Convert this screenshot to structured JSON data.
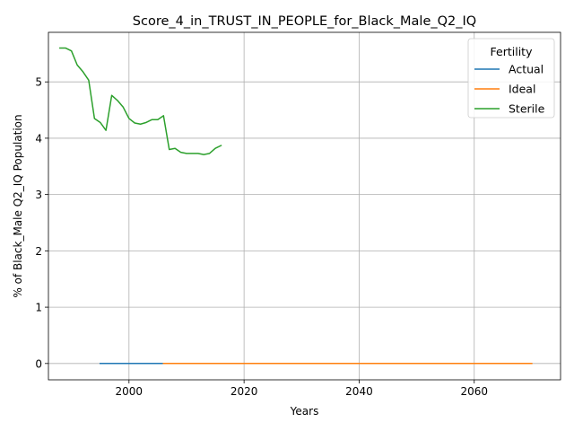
{
  "chart_data": {
    "type": "line",
    "title": "Score_4_in_TRUST_IN_PEOPLE_for_Black_Male_Q2_IQ",
    "xlabel": "Years",
    "ylabel": "% of Black_Male Q2_IQ Population",
    "xlim": [
      1986,
      2075
    ],
    "ylim": [
      -0.29,
      5.88
    ],
    "xticks": [
      2000,
      2020,
      2040,
      2060
    ],
    "yticks": [
      0,
      1,
      2,
      3,
      4,
      5
    ],
    "grid": true,
    "legend": {
      "title": "Fertility",
      "position": "top-right"
    },
    "series": [
      {
        "name": "Actual",
        "color": "#1f77b4",
        "x": [
          1995,
          2000,
          2005,
          2006
        ],
        "y": [
          0,
          0,
          0,
          0
        ]
      },
      {
        "name": "Ideal",
        "color": "#ff7f0e",
        "x": [
          2006,
          2020,
          2040,
          2060,
          2070
        ],
        "y": [
          0,
          0,
          0,
          0,
          0
        ]
      },
      {
        "name": "Sterile",
        "color": "#2ca02c",
        "x": [
          1988,
          1989,
          1990,
          1991,
          1992,
          1993,
          1994,
          1995,
          1996,
          1997,
          1998,
          1999,
          2000,
          2001,
          2002,
          2003,
          2004,
          2005,
          2006,
          2007,
          2008,
          2009,
          2010,
          2011,
          2012,
          2013,
          2014,
          2015,
          2016
        ],
        "y": [
          5.6,
          5.6,
          5.55,
          5.3,
          5.18,
          5.03,
          4.35,
          4.28,
          4.14,
          4.76,
          4.67,
          4.55,
          4.35,
          4.27,
          4.25,
          4.28,
          4.33,
          4.33,
          4.4,
          3.8,
          3.82,
          3.75,
          3.73,
          3.73,
          3.73,
          3.71,
          3.73,
          3.82,
          3.87
        ]
      }
    ]
  }
}
